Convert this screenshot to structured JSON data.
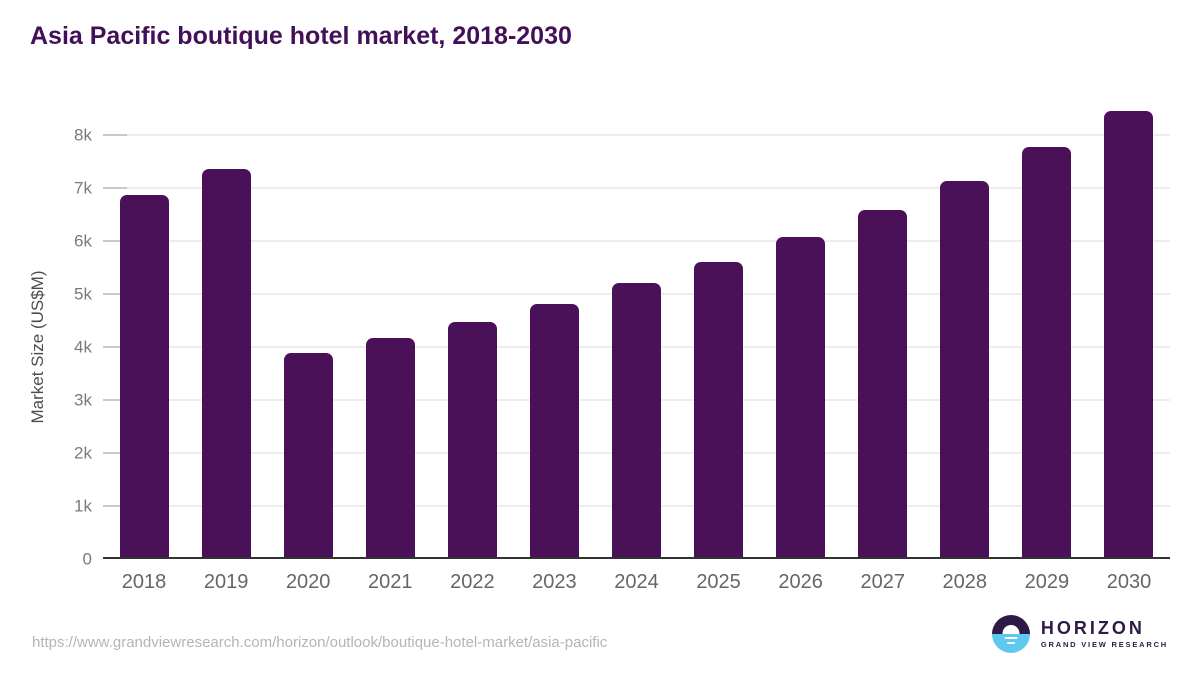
{
  "title": "Asia Pacific boutique hotel market, 2018-2030",
  "chart_data": {
    "type": "bar",
    "title": "Asia Pacific boutique hotel market, 2018-2030",
    "xlabel": "",
    "ylabel": "Market Size (US$M)",
    "categories": [
      "2018",
      "2019",
      "2020",
      "2021",
      "2022",
      "2023",
      "2024",
      "2025",
      "2026",
      "2027",
      "2028",
      "2029",
      "2030"
    ],
    "values": [
      6870,
      7360,
      3880,
      4170,
      4470,
      4820,
      5210,
      5610,
      6070,
      6580,
      7140,
      7770,
      8460
    ],
    "ylim": [
      0,
      8585
    ],
    "yticks": {
      "values": [
        0,
        1000,
        2000,
        3000,
        4000,
        5000,
        6000,
        7000,
        8000
      ],
      "labels": [
        "0",
        "1k",
        "2k",
        "3k",
        "4k",
        "5k",
        "6k",
        "7k",
        "8k"
      ]
    },
    "grid": true,
    "legend": null,
    "bar_color": "#4a1159"
  },
  "footer": {
    "source_url": "https://www.grandviewresearch.com/horizon/outlook/boutique-hotel-market/asia-pacific",
    "logo": {
      "name": "HORIZON",
      "subtitle": "GRAND VIEW RESEARCH",
      "circle_top_color": "#2e1a47",
      "circle_bottom_color": "#5ec9ee"
    }
  },
  "colors": {
    "title": "#421059",
    "bar": "#4a1159",
    "gridline": "#ededed",
    "axis_line": "#323232",
    "tick_label": "#7a7a7a",
    "x_label": "#666666",
    "url_text": "#b5b5b5"
  }
}
